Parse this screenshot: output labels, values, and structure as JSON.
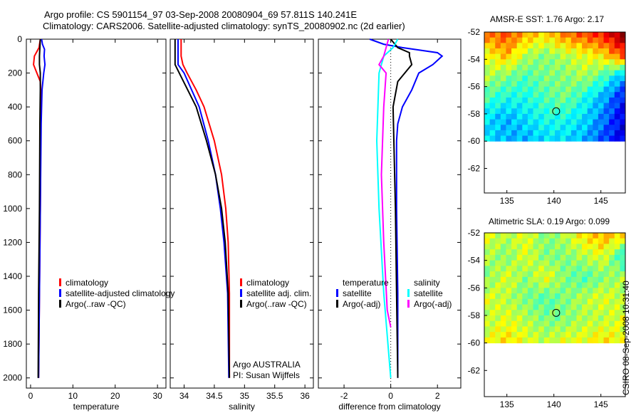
{
  "title_line1": "Argo profile: CS 5901154_97 03-Sep-2008 20080904_69 57.811S 140.241E",
  "title_line2": "Climatology: CARS2006. Satellite-adjusted climatology: synTS_20080902.nc (2d earlier)",
  "stamp": "CSIRO 08-Sep-2008 10:31:40",
  "colors": {
    "red": "#ff0000",
    "blue": "#0000ff",
    "black": "#000000",
    "cyan": "#00ffff",
    "magenta": "#ff00ff"
  },
  "chart_data": [
    {
      "type": "line",
      "xlabel": "temperature",
      "ylim": [
        0,
        2060
      ],
      "xlim": [
        -1,
        32
      ],
      "yticks": [
        0,
        200,
        400,
        600,
        800,
        1000,
        1200,
        1400,
        1600,
        1800,
        2000
      ],
      "xticks": [
        0,
        10,
        20,
        30
      ],
      "legend": [
        "climatology",
        "satellite-adjusted climatology",
        "Argo(..raw -QC)"
      ],
      "series": [
        {
          "name": "climatology",
          "color": "red",
          "depth": [
            0,
            50,
            100,
            150,
            200,
            250,
            300,
            500,
            1000,
            1500,
            2000
          ],
          "values": [
            2.3,
            2.0,
            0.9,
            0.7,
            1.5,
            2.3,
            2.4,
            2.4,
            2.3,
            2.1,
            1.9
          ]
        },
        {
          "name": "satellite-adjusted climatology",
          "color": "blue",
          "depth": [
            0,
            30,
            60,
            100,
            150,
            200,
            250,
            300,
            500,
            1000,
            1500,
            2000
          ],
          "values": [
            2.6,
            2.8,
            3.3,
            3.2,
            3.4,
            3.1,
            2.9,
            2.7,
            2.5,
            2.3,
            2.1,
            1.9
          ]
        },
        {
          "name": "Argo(..raw -QC)",
          "color": "black",
          "depth": [
            0,
            50,
            100,
            150,
            200,
            300,
            500,
            1000,
            1500,
            2000
          ],
          "values": [
            2.3,
            2.2,
            2.1,
            2.1,
            2.3,
            2.3,
            2.2,
            2.1,
            1.9,
            1.8
          ]
        }
      ]
    },
    {
      "type": "line",
      "xlabel": "salinity",
      "ylim": [
        0,
        2060
      ],
      "xlim": [
        33.77,
        36.14
      ],
      "xticks": [
        34,
        34.5,
        35,
        35.5,
        36
      ],
      "xticklabels": [
        "34",
        "34.5",
        "35",
        "35.5",
        "36"
      ],
      "legend": [
        "climatology",
        "satellite adj. clim.",
        "Argo(..raw -QC)"
      ],
      "annotation": [
        "Argo AUSTRALIA",
        "PI: Susan Wijffels"
      ],
      "series": [
        {
          "name": "climatology",
          "color": "red",
          "depth": [
            0,
            100,
            150,
            200,
            300,
            400,
            600,
            800,
            1000,
            1200,
            1500,
            2000
          ],
          "values": [
            33.95,
            33.95,
            33.98,
            34.05,
            34.2,
            34.33,
            34.5,
            34.62,
            34.69,
            34.73,
            34.75,
            34.75
          ]
        },
        {
          "name": "satellite adj. clim.",
          "color": "blue",
          "depth": [
            0,
            150,
            200,
            400,
            600,
            800,
            1000,
            1200,
            1500,
            2000
          ],
          "values": [
            33.9,
            33.9,
            34.0,
            34.25,
            34.4,
            34.52,
            34.6,
            34.66,
            34.72,
            34.74
          ]
        },
        {
          "name": "Argo(..raw -QC)",
          "color": "black",
          "depth": [
            0,
            150,
            200,
            400,
            600,
            800,
            1000,
            1200,
            1500,
            2000
          ],
          "values": [
            33.85,
            33.85,
            33.92,
            34.2,
            34.37,
            34.52,
            34.62,
            34.68,
            34.73,
            34.75
          ]
        }
      ]
    },
    {
      "type": "line",
      "xlabel": "difference from climatology",
      "ylim": [
        0,
        2060
      ],
      "xlim": [
        -3.1,
        3.0
      ],
      "xticks": [
        -2,
        0,
        2
      ],
      "legend": {
        "temperature": [
          "temperature",
          "satellite",
          "Argo(-adj)"
        ],
        "salinity": [
          "salinity",
          "satellite",
          "Argo(-adj)"
        ]
      },
      "series": [
        {
          "name": "temperature satellite",
          "color": "blue",
          "depth": [
            0,
            30,
            50,
            80,
            100,
            150,
            200,
            300,
            400,
            500,
            600,
            1000,
            1500,
            2000
          ],
          "values": [
            -0.9,
            -0.3,
            0.5,
            2.0,
            2.2,
            1.8,
            1.2,
            0.9,
            0.5,
            0.3,
            0.25,
            0.25,
            0.3,
            0.3
          ]
        },
        {
          "name": "temperature Argo(-adj)",
          "color": "black",
          "depth": [
            0,
            50,
            80,
            100,
            150,
            200,
            250,
            400,
            1000,
            1500,
            2000
          ],
          "values": [
            0,
            0.3,
            0.8,
            0.8,
            0.9,
            0.6,
            0.3,
            0.1,
            0.2,
            0.25,
            0.3
          ]
        },
        {
          "name": "salinity satellite",
          "color": "cyan",
          "depth": [
            0,
            50,
            100,
            200,
            400,
            600,
            1000,
            1500,
            2000
          ],
          "values": [
            0.3,
            0.1,
            -0.3,
            -0.5,
            -0.55,
            -0.6,
            -0.5,
            -0.3,
            0.0
          ]
        },
        {
          "name": "salinity Argo(-adj)",
          "color": "magenta",
          "depth": [
            0,
            50,
            100,
            150,
            200,
            400,
            800,
            1200,
            1600,
            1700
          ],
          "values": [
            -0.1,
            -0.2,
            -0.3,
            -0.5,
            -0.2,
            -0.3,
            -0.4,
            -0.3,
            -0.15,
            0.0
          ]
        }
      ]
    },
    {
      "type": "heatmap",
      "title": "AMSR-E SST: 1.76 Argo: 2.17",
      "xlim": [
        132.6,
        147.6
      ],
      "ylim": [
        -63.8,
        -52
      ],
      "xticks": [
        135,
        140,
        145
      ],
      "yticks": [
        -52,
        -54,
        -56,
        -58,
        -60,
        -62
      ],
      "extent_lat": [
        -60,
        -52
      ],
      "marker": {
        "lon": 140.241,
        "lat": -57.811
      },
      "grid": [
        [
          0.75,
          0.8,
          0.7,
          0.65,
          0.75,
          0.8,
          0.85,
          1.0
        ],
        [
          0.6,
          0.7,
          0.55,
          0.5,
          0.55,
          0.6,
          0.65,
          0.8
        ],
        [
          0.55,
          0.5,
          0.45,
          0.5,
          0.5,
          0.55,
          0.45,
          0.3
        ],
        [
          0.45,
          0.4,
          0.4,
          0.45,
          0.5,
          0.4,
          0.3,
          0.15
        ],
        [
          0.35,
          0.3,
          0.35,
          0.4,
          0.4,
          0.35,
          0.25,
          0.1
        ],
        [
          0.35,
          0.3,
          0.3,
          0.35,
          0.35,
          0.3,
          0.2,
          0.1
        ]
      ]
    },
    {
      "type": "heatmap",
      "title": "Altimetric SLA: 0.19 Argo: 0.099",
      "xlim": [
        132.6,
        147.6
      ],
      "ylim": [
        -63.9,
        -52
      ],
      "xticks": [
        135,
        140,
        145
      ],
      "yticks": [
        -52,
        -54,
        -56,
        -58,
        -60,
        -62
      ],
      "extent_lat": [
        -60,
        -52
      ],
      "marker": {
        "lon": 140.241,
        "lat": -57.811
      },
      "grid": [
        [
          0.6,
          0.55,
          0.6,
          0.5,
          0.55,
          0.65,
          0.7,
          0.65
        ],
        [
          0.55,
          0.5,
          0.6,
          0.5,
          0.5,
          0.55,
          0.6,
          0.4
        ],
        [
          0.5,
          0.6,
          0.5,
          0.62,
          0.5,
          0.45,
          0.5,
          0.55
        ],
        [
          0.6,
          0.55,
          0.5,
          0.45,
          0.5,
          0.55,
          0.6,
          0.55
        ],
        [
          0.55,
          0.6,
          0.55,
          0.5,
          0.5,
          0.55,
          0.55,
          0.6
        ],
        [
          0.6,
          0.65,
          0.6,
          0.55,
          0.6,
          0.6,
          0.65,
          0.6
        ]
      ]
    }
  ]
}
